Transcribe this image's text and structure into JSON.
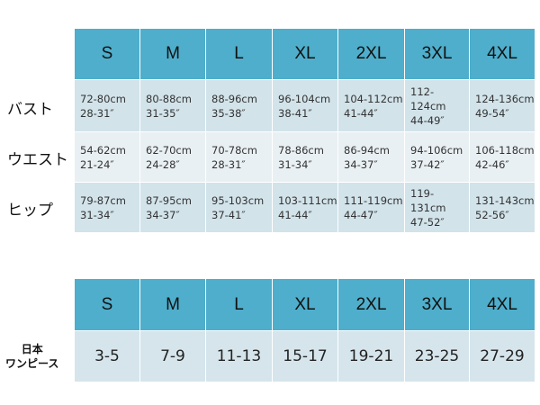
{
  "sizes": [
    "S",
    "M",
    "L",
    "XL",
    "2XL",
    "3XL",
    "4XL"
  ],
  "measurements": [
    {
      "label": "バスト",
      "cells": [
        [
          "72-80cm",
          "28-31″"
        ],
        [
          "80-88cm",
          "31-35″"
        ],
        [
          "88-96cm",
          "35-38″"
        ],
        [
          "96-104cm",
          "38-41″"
        ],
        [
          "104-112cm",
          "41-44″"
        ],
        [
          "112-124cm",
          "44-49″"
        ],
        [
          "124-136cm",
          "49-54″"
        ]
      ]
    },
    {
      "label": "ウエスト",
      "cells": [
        [
          "54-62cm",
          "21-24″"
        ],
        [
          "62-70cm",
          "24-28″"
        ],
        [
          "70-78cm",
          "28-31″"
        ],
        [
          "78-86cm",
          "31-34″"
        ],
        [
          "86-94cm",
          "34-37″"
        ],
        [
          "94-106cm",
          "37-42″"
        ],
        [
          "106-118cm",
          "42-46″"
        ]
      ]
    },
    {
      "label": "ヒップ",
      "cells": [
        [
          "79-87cm",
          "31-34″"
        ],
        [
          "87-95cm",
          "34-37″"
        ],
        [
          "95-103cm",
          "37-41″"
        ],
        [
          "103-111cm",
          "41-44″"
        ],
        [
          "111-119cm",
          "44-47″"
        ],
        [
          "119-131cm",
          "47-52″"
        ],
        [
          "131-143cm",
          "52-56″"
        ]
      ]
    }
  ],
  "japan": {
    "label_line1": "日本",
    "label_line2": "ワンピース",
    "values": [
      "3-5",
      "7-9",
      "11-13",
      "15-17",
      "19-21",
      "23-25",
      "27-29"
    ]
  },
  "colors": {
    "header": "#4eaecb",
    "row_dark": "#d2e3ea",
    "row_light": "#e9f0f3"
  }
}
